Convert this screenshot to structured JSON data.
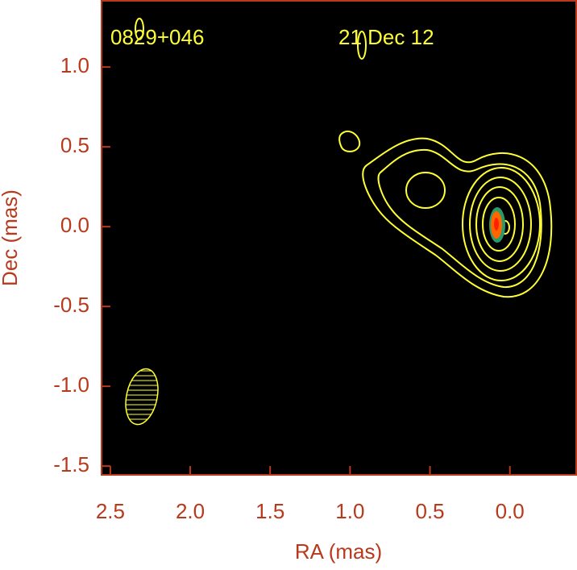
{
  "chart_data": {
    "type": "contour",
    "source": "0829+046",
    "date": "21 Dec 12",
    "xlabel": "RA (mas)",
    "ylabel": "Dec (mas)",
    "xlim": [
      2.56,
      -0.42
    ],
    "ylim": [
      -1.56,
      1.42
    ],
    "xticks": [
      2.5,
      {
        "value": 2,
        "label": "2.0"
      },
      1.5,
      {
        "value": 1,
        "label": "1.0"
      },
      0.5,
      {
        "value": 0,
        "label": "0.0"
      }
    ],
    "yticks": [
      -1.5,
      {
        "value": -1,
        "label": "-1.0"
      },
      -0.5,
      {
        "value": 0,
        "label": "0.0"
      },
      0.5,
      {
        "value": 1,
        "label": "1.0"
      }
    ],
    "axis_color": "#b8391c",
    "contour_color": "#ffff33"
  }
}
